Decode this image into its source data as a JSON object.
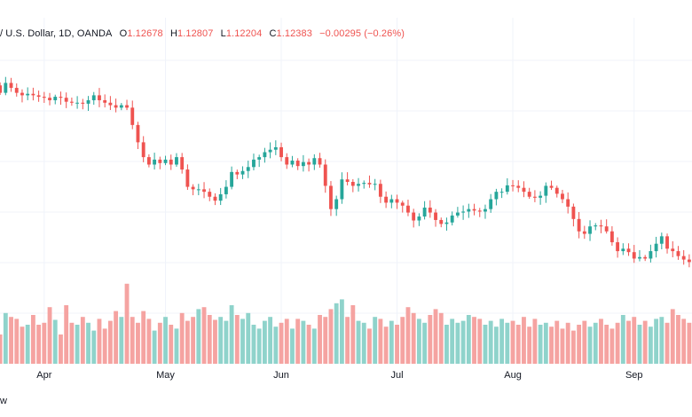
{
  "legend": {
    "symbol_desc": "/ U.S. Dollar, 1D, OANDA",
    "open_label": "O",
    "open_value": "1.12678",
    "high_label": "H",
    "high_value": "1.12807",
    "low_label": "L",
    "low_value": "1.12204",
    "close_label": "C",
    "close_value": "1.12383",
    "change": "−0.00295 (−0.26%)"
  },
  "x_axis": {
    "ticks": [
      {
        "label": "Apr",
        "index": 8
      },
      {
        "label": "May",
        "index": 30
      },
      {
        "label": "Jun",
        "index": 51
      },
      {
        "label": "Jul",
        "index": 72
      },
      {
        "label": "Aug",
        "index": 93
      },
      {
        "label": "Sep",
        "index": 115
      }
    ]
  },
  "brand_tail": "w",
  "colors": {
    "up": "#26a69a",
    "down": "#ef5350",
    "vol_up": "#8fd3cb",
    "vol_down": "#f5a3a1",
    "grid": "#f0f3fa",
    "text": "#131722"
  },
  "chart_data": {
    "type": "candlestick",
    "title": "/ U.S. Dollar, 1D, OANDA",
    "xlabel": "",
    "ylabel": "",
    "x_tick_labels": [
      "Apr",
      "May",
      "Jun",
      "Jul",
      "Aug",
      "Sep"
    ],
    "price_ylim": [
      1.098,
      1.15
    ],
    "volume_ylim": [
      0,
      100
    ],
    "grid": true,
    "series": [
      {
        "name": "price",
        "close": [
          1.142,
          1.144,
          1.143,
          1.142,
          1.1415,
          1.1418,
          1.1415,
          1.1412,
          1.141,
          1.1405,
          1.1412,
          1.141,
          1.1402,
          1.14,
          1.14,
          1.1398,
          1.1405,
          1.1415,
          1.1405,
          1.14,
          1.1395,
          1.139,
          1.1395,
          1.139,
          1.1355,
          1.132,
          1.129,
          1.1275,
          1.1285,
          1.1278,
          1.1285,
          1.1275,
          1.129,
          1.1265,
          1.123,
          1.1225,
          1.1225,
          1.122,
          1.121,
          1.1202,
          1.1215,
          1.123,
          1.126,
          1.1255,
          1.1262,
          1.127,
          1.1285,
          1.129,
          1.13,
          1.1305,
          1.131,
          1.129,
          1.1275,
          1.1283,
          1.1272,
          1.128,
          1.1275,
          1.1288,
          1.1275,
          1.1232,
          1.1185,
          1.1205,
          1.1245,
          1.124,
          1.1232,
          1.1236,
          1.1238,
          1.1235,
          1.1236,
          1.121,
          1.1198,
          1.1205,
          1.1198,
          1.1192,
          1.1178,
          1.1162,
          1.117,
          1.1188,
          1.1178,
          1.1163,
          1.1155,
          1.1158,
          1.1172,
          1.1178,
          1.118,
          1.1185,
          1.1182,
          1.118,
          1.1185,
          1.1205,
          1.122,
          1.122,
          1.1233,
          1.1232,
          1.1228,
          1.122,
          1.121,
          1.1208,
          1.1212,
          1.1232,
          1.1228,
          1.1216,
          1.1205,
          1.119,
          1.1165,
          1.114,
          1.1135,
          1.115,
          1.1152,
          1.115,
          1.114,
          1.1118,
          1.11,
          1.1105,
          1.1098,
          1.1085,
          1.1088,
          1.1085,
          1.11,
          1.1115,
          1.113,
          1.1105,
          1.11,
          1.109,
          1.1083,
          1.1078
        ]
      },
      {
        "name": "volume",
        "values": [
          30,
          52,
          48,
          46,
          38,
          40,
          50,
          40,
          42,
          58,
          45,
          30,
          60,
          42,
          40,
          48,
          42,
          34,
          46,
          36,
          44,
          54,
          48,
          82,
          48,
          42,
          54,
          46,
          34,
          42,
          48,
          40,
          36,
          52,
          44,
          48,
          56,
          58,
          50,
          45,
          48,
          44,
          60,
          50,
          46,
          52,
          40,
          36,
          44,
          48,
          38,
          42,
          46,
          36,
          46,
          44,
          40,
          36,
          50,
          48,
          56,
          62,
          66,
          48,
          60,
          44,
          42,
          36,
          48,
          46,
          38,
          44,
          40,
          48,
          58,
          52,
          46,
          42,
          50,
          56,
          52,
          40,
          46,
          42,
          44,
          50,
          48,
          46,
          40,
          44,
          38,
          46,
          42,
          44,
          40,
          48,
          38,
          46,
          40,
          42,
          38,
          44,
          36,
          42,
          34,
          40,
          44,
          38,
          42,
          46,
          40,
          36,
          42,
          50,
          44,
          48,
          40,
          44,
          38,
          46,
          48,
          42,
          56,
          50,
          46,
          42
        ]
      }
    ]
  }
}
